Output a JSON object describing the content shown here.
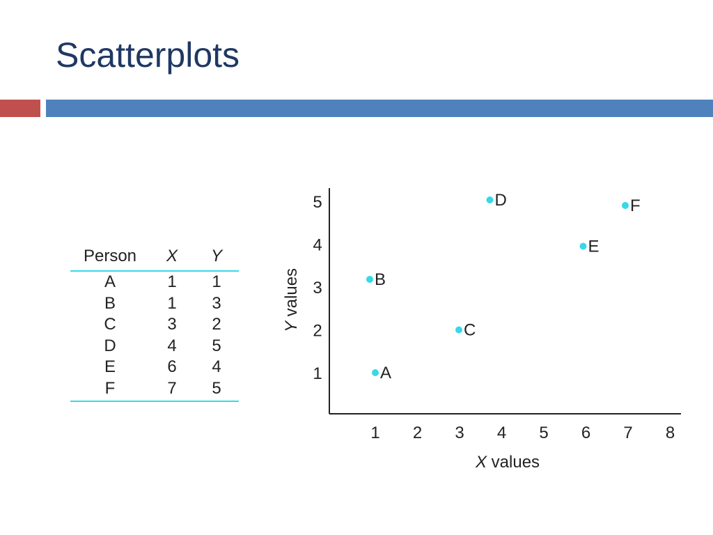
{
  "slide": {
    "title": "Scatterplots"
  },
  "table": {
    "headers": [
      "Person",
      "X",
      "Y"
    ],
    "rows": [
      [
        "A",
        "1",
        "1"
      ],
      [
        "B",
        "1",
        "3"
      ],
      [
        "C",
        "3",
        "2"
      ],
      [
        "D",
        "4",
        "5"
      ],
      [
        "E",
        "6",
        "4"
      ],
      [
        "F",
        "7",
        "5"
      ]
    ]
  },
  "chart_data": {
    "type": "scatter",
    "title": "",
    "xlabel_italic": "X",
    "xlabel_rest": " values",
    "ylabel_italic": "Y",
    "ylabel_rest": " values",
    "x_ticks": [
      "1",
      "2",
      "3",
      "4",
      "5",
      "6",
      "7",
      "8"
    ],
    "y_ticks": [
      "1",
      "2",
      "3",
      "4",
      "5"
    ],
    "xlim": [
      0,
      8
    ],
    "ylim": [
      0,
      5
    ],
    "grid": false,
    "marker_color": "#35d9e8",
    "points": [
      {
        "label": "A",
        "x": 1,
        "y": 1
      },
      {
        "label": "B",
        "x": 1,
        "y": 3
      },
      {
        "label": "C",
        "x": 3,
        "y": 2
      },
      {
        "label": "D",
        "x": 4,
        "y": 5
      },
      {
        "label": "E",
        "x": 6,
        "y": 4
      },
      {
        "label": "F",
        "x": 7,
        "y": 5
      }
    ]
  }
}
